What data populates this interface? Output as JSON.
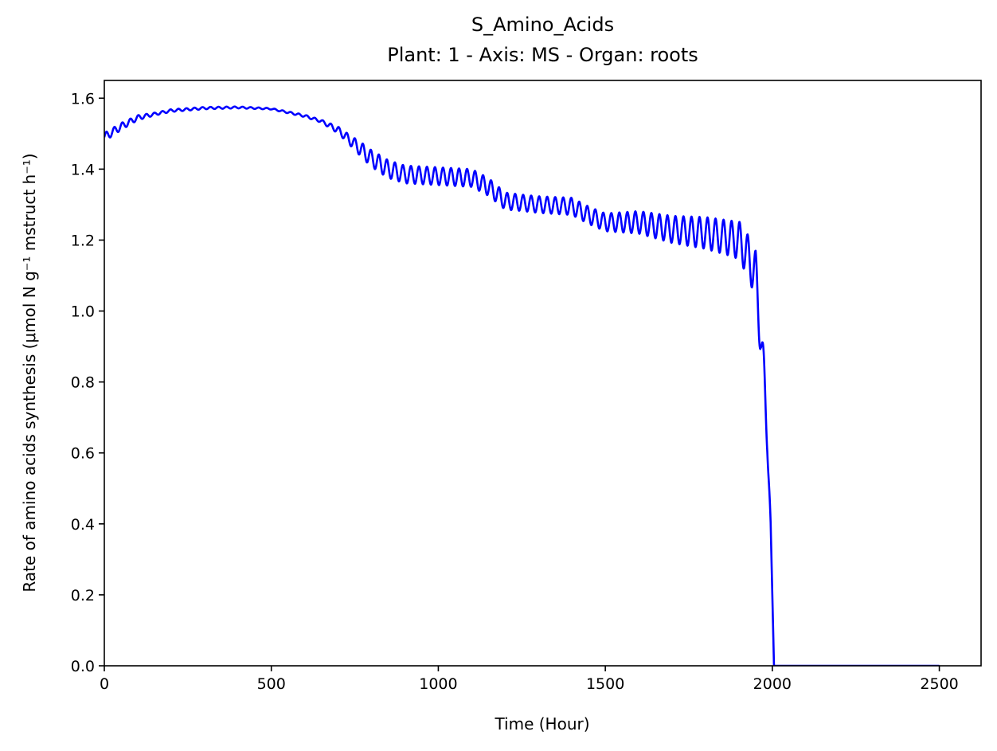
{
  "chart_data": {
    "type": "line",
    "title": "S_Amino_Acids",
    "subtitle": "Plant: 1 - Axis: MS - Organ: roots",
    "xlabel": "Time (Hour)",
    "ylabel": "Rate of amino acids synthesis (μmol N g⁻¹ mstruct h⁻¹)",
    "xlim": [
      0,
      2625
    ],
    "ylim": [
      0,
      1.65
    ],
    "xticks": [
      0,
      500,
      1000,
      1500,
      2000,
      2500
    ],
    "xtick_labels": [
      "0",
      "500",
      "1000",
      "1500",
      "2000",
      "2500"
    ],
    "yticks": [
      0.0,
      0.2,
      0.4,
      0.6,
      0.8,
      1.0,
      1.2,
      1.4,
      1.6
    ],
    "ytick_labels": [
      "0.0",
      "0.2",
      "0.4",
      "0.6",
      "0.8",
      "1.0",
      "1.2",
      "1.4",
      "1.6"
    ],
    "grid": false,
    "series": [
      {
        "color": "#0000ff",
        "baseline_x": [
          0,
          50,
          100,
          200,
          300,
          400,
          500,
          600,
          650,
          700,
          750,
          800,
          850,
          900,
          1000,
          1100,
          1150,
          1200,
          1300,
          1400,
          1450,
          1500,
          1600,
          1700,
          1800,
          1900,
          1930,
          1950,
          1965,
          1975,
          1985,
          1995,
          2005,
          2500
        ],
        "baseline_y": [
          1.49,
          1.52,
          1.545,
          1.565,
          1.572,
          1.574,
          1.57,
          1.55,
          1.535,
          1.51,
          1.47,
          1.43,
          1.4,
          1.385,
          1.38,
          1.375,
          1.35,
          1.31,
          1.3,
          1.295,
          1.27,
          1.25,
          1.25,
          1.23,
          1.22,
          1.2,
          1.15,
          1.1,
          0.95,
          0.8,
          0.65,
          0.4,
          0.0,
          0.0
        ],
        "oscillation_x": [
          0,
          50,
          150,
          500,
          650,
          720,
          780,
          830,
          1100,
          1150,
          1250,
          1500,
          1880,
          1930,
          1945,
          1960,
          1975,
          1985,
          1996,
          2005
        ],
        "oscillation_amplitude": [
          0.012,
          0.01,
          0.004,
          0.002,
          0.004,
          0.012,
          0.022,
          0.025,
          0.025,
          0.025,
          0.023,
          0.025,
          0.05,
          0.06,
          0.065,
          0.08,
          0.07,
          0.05,
          0.0,
          0.0
        ],
        "oscillation_period_hours": 24
      }
    ]
  }
}
